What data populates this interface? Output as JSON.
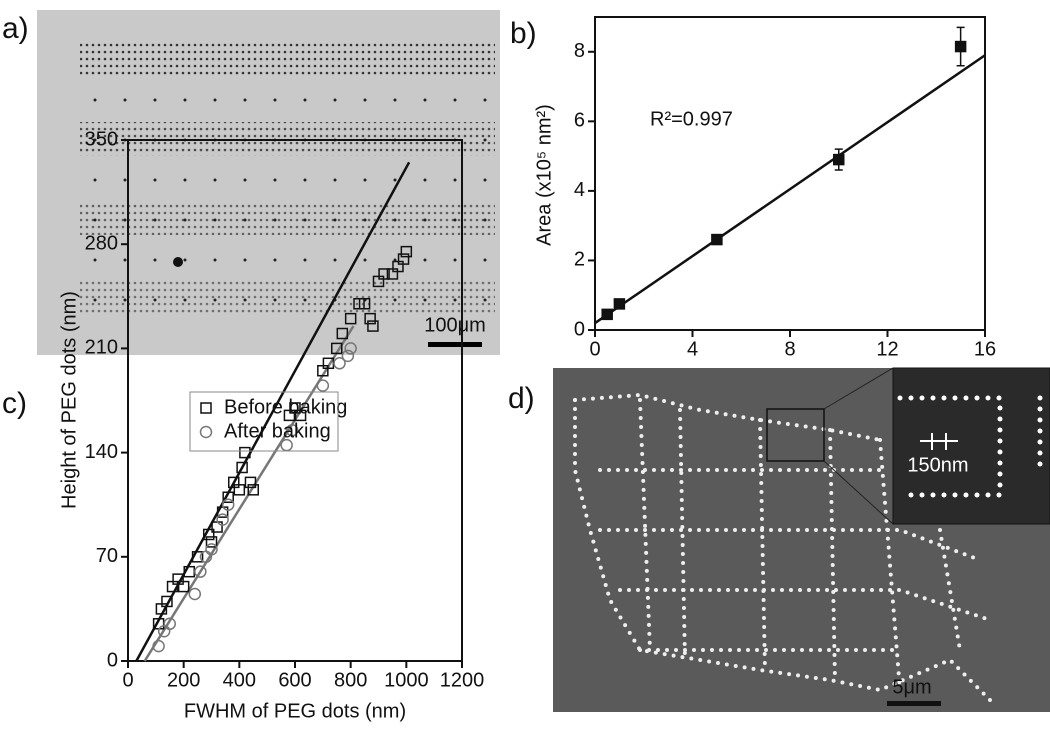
{
  "panels": {
    "a": {
      "label": "a)",
      "scale_bar": "100μm"
    },
    "d": {
      "label": "d)",
      "scale_bar": "5μm",
      "inset_label": "150nm"
    }
  },
  "chart_data": [
    {
      "type": "scatter",
      "label": "b)",
      "ylabel": "Area (x10⁵ nm²)",
      "annotation": "R²=0.997",
      "xlim": [
        0,
        16
      ],
      "xticks": [
        0,
        4,
        8,
        12,
        16
      ],
      "ylim": [
        0,
        9
      ],
      "yticks": [
        0,
        2,
        4,
        6,
        8
      ],
      "series": [
        {
          "color": "#111111",
          "marker": "square",
          "x": [
            0.5,
            1,
            5,
            10,
            15
          ],
          "values": [
            0.45,
            0.75,
            2.6,
            4.9,
            8.15
          ],
          "errors": [
            null,
            null,
            null,
            0.3,
            0.55
          ]
        }
      ],
      "fits": [
        {
          "color": "#111111",
          "x": [
            0,
            16
          ],
          "values": [
            0.2,
            7.9
          ]
        }
      ]
    },
    {
      "type": "scatter",
      "label": "c)",
      "xlabel": "FWHM of PEG dots (nm)",
      "ylabel": "Height of PEG dots (nm)",
      "xlim": [
        0,
        1200
      ],
      "xticks": [
        0,
        200,
        400,
        600,
        800,
        1000,
        1200
      ],
      "ylim": [
        0,
        350
      ],
      "yticks": [
        0,
        70,
        140,
        210,
        280,
        350
      ],
      "series": [
        {
          "name": "Before baking",
          "color": "#111111",
          "marker": "square",
          "x": [
            110,
            120,
            140,
            160,
            180,
            200,
            220,
            250,
            290,
            300,
            320,
            340,
            360,
            380,
            400,
            410,
            420,
            440,
            450,
            580,
            600,
            620,
            700,
            720,
            750,
            770,
            800,
            830,
            850,
            870,
            880,
            900,
            920,
            950,
            970,
            990,
            1000
          ],
          "values": [
            25,
            35,
            40,
            50,
            55,
            50,
            60,
            70,
            85,
            80,
            90,
            100,
            110,
            120,
            115,
            130,
            140,
            120,
            115,
            165,
            170,
            165,
            195,
            200,
            210,
            220,
            230,
            240,
            240,
            230,
            225,
            255,
            260,
            260,
            265,
            270,
            275
          ]
        },
        {
          "name": "After baking",
          "color": "#777777",
          "marker": "circle",
          "x": [
            110,
            130,
            150,
            240,
            260,
            280,
            300,
            340,
            360,
            570,
            590,
            700,
            760,
            790,
            800
          ],
          "values": [
            10,
            20,
            25,
            45,
            60,
            70,
            75,
            95,
            105,
            145,
            155,
            185,
            200,
            205,
            210
          ]
        }
      ],
      "fits": [
        {
          "color": "#111111",
          "x": [
            30,
            1010
          ],
          "values": [
            0,
            335
          ]
        },
        {
          "color": "#777777",
          "x": [
            60,
            810
          ],
          "values": [
            0,
            225
          ]
        }
      ]
    }
  ]
}
